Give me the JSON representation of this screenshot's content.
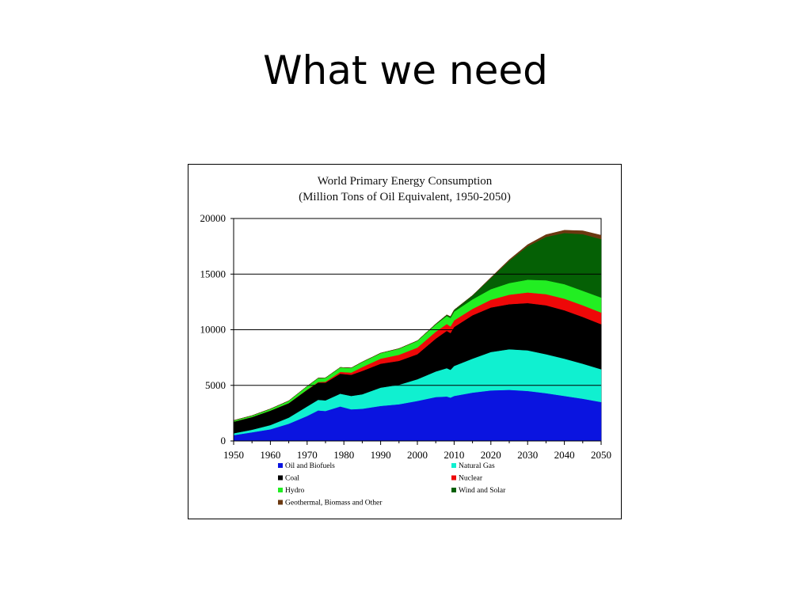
{
  "slide": {
    "title": "What we need"
  },
  "chart_data": {
    "type": "area",
    "title": "World Primary Energy Consumption",
    "subtitle": "(Million Tons of Oil Equivalent, 1950-2050)",
    "xlabel": "",
    "ylabel": "",
    "xlim": [
      1950,
      2050
    ],
    "ylim": [
      0,
      20000
    ],
    "x_ticks": [
      1950,
      1960,
      1970,
      1980,
      1990,
      2000,
      2010,
      2020,
      2030,
      2040,
      2050
    ],
    "y_ticks": [
      0,
      5000,
      10000,
      15000,
      20000
    ],
    "grid": "horizontal",
    "legend_position": "bottom",
    "x": [
      1950,
      1955,
      1960,
      1965,
      1970,
      1973,
      1975,
      1979,
      1982,
      1985,
      1990,
      1995,
      2000,
      2005,
      2008,
      2009,
      2010,
      2015,
      2020,
      2025,
      2030,
      2035,
      2040,
      2045,
      2050
    ],
    "series": [
      {
        "name": "Oil and Biofuels",
        "color": "#0a14e0",
        "values": [
          530,
          780,
          1050,
          1550,
          2250,
          2750,
          2700,
          3100,
          2850,
          2900,
          3150,
          3300,
          3600,
          3950,
          4000,
          3900,
          4050,
          4350,
          4550,
          4600,
          4500,
          4300,
          4050,
          3800,
          3500
        ]
      },
      {
        "name": "Natural Gas",
        "color": "#10f0d0",
        "values": [
          160,
          230,
          380,
          550,
          850,
          950,
          950,
          1150,
          1200,
          1300,
          1650,
          1750,
          1950,
          2300,
          2550,
          2500,
          2700,
          3050,
          3450,
          3650,
          3650,
          3500,
          3350,
          3150,
          2950
        ]
      },
      {
        "name": "Coal",
        "color": "#000000",
        "values": [
          1050,
          1150,
          1300,
          1300,
          1500,
          1550,
          1600,
          1800,
          1900,
          2100,
          2150,
          2150,
          2250,
          2950,
          3350,
          3300,
          3500,
          3900,
          4000,
          4050,
          4250,
          4400,
          4350,
          4200,
          4050
        ]
      },
      {
        "name": "Nuclear",
        "color": "#ee0808",
        "values": [
          0,
          0,
          0,
          10,
          20,
          50,
          80,
          160,
          200,
          350,
          450,
          550,
          600,
          620,
          620,
          600,
          600,
          580,
          700,
          850,
          950,
          1000,
          1050,
          1050,
          1050
        ]
      },
      {
        "name": "Hydro",
        "color": "#22ee22",
        "values": [
          100,
          120,
          150,
          200,
          300,
          350,
          350,
          400,
          420,
          450,
          500,
          550,
          600,
          650,
          720,
          760,
          780,
          850,
          950,
          1050,
          1150,
          1250,
          1300,
          1300,
          1350
        ]
      },
      {
        "name": "Wind and Solar",
        "color": "#056005",
        "values": [
          0,
          0,
          0,
          0,
          0,
          0,
          0,
          0,
          0,
          0,
          0,
          5,
          10,
          50,
          100,
          120,
          150,
          350,
          1000,
          2000,
          3000,
          3900,
          4600,
          5100,
          5250
        ]
      },
      {
        "name": "Geothermal, Biomass and Other",
        "color": "#6b3810",
        "values": [
          0,
          0,
          0,
          0,
          0,
          0,
          0,
          0,
          0,
          0,
          0,
          0,
          0,
          0,
          0,
          0,
          0,
          0,
          50,
          100,
          150,
          200,
          250,
          300,
          350
        ]
      }
    ]
  }
}
